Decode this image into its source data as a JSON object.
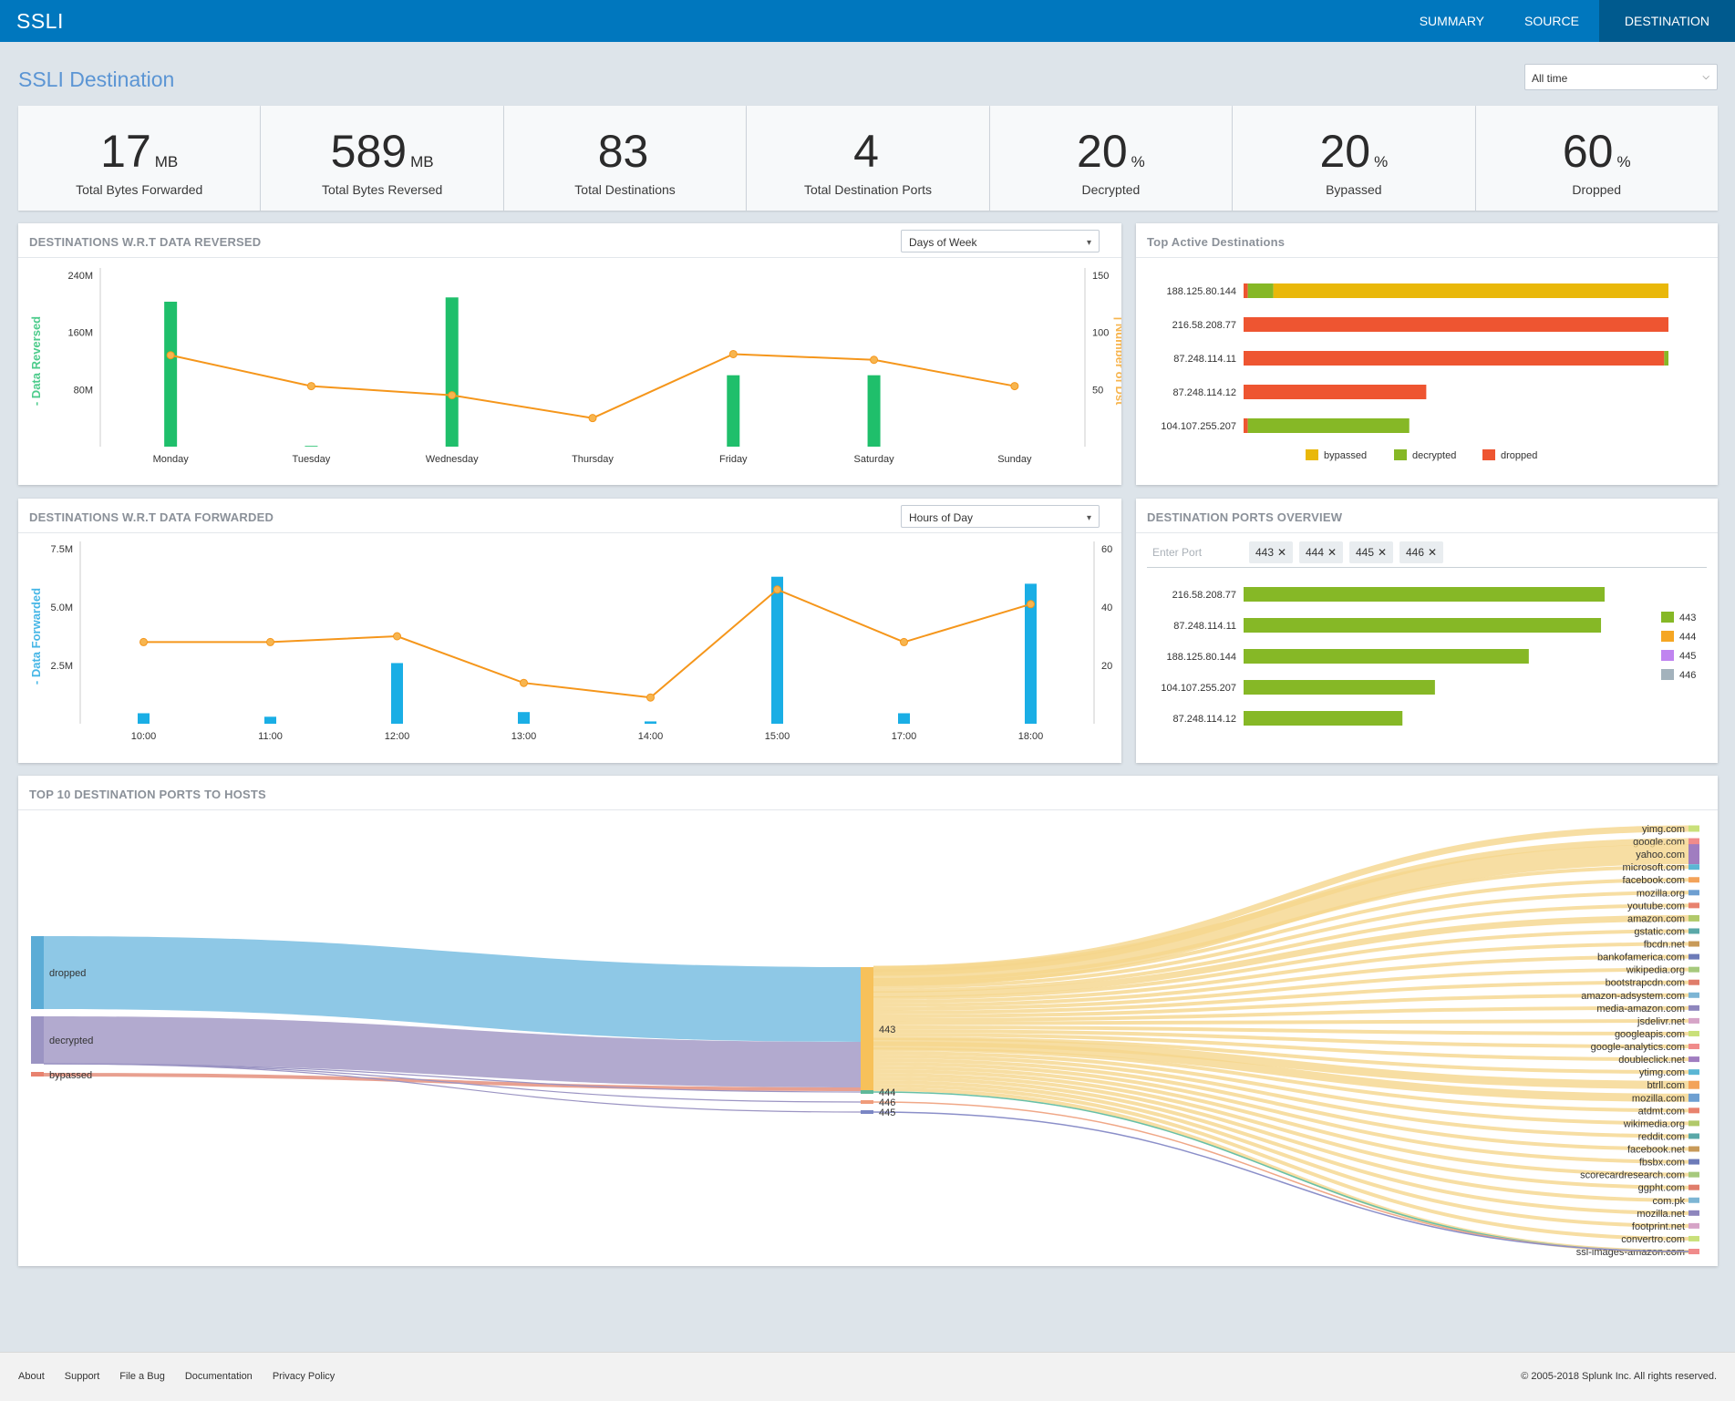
{
  "app": {
    "title": "SSLI"
  },
  "nav": {
    "items": [
      {
        "label": "SUMMARY",
        "active": false
      },
      {
        "label": "SOURCE",
        "active": false
      },
      {
        "label": "DESTINATION",
        "active": true
      }
    ]
  },
  "page": {
    "title": "SSLI Destination",
    "time_range": "All time"
  },
  "kpis": [
    {
      "value": "17",
      "unit": "MB",
      "label": "Total Bytes Forwarded"
    },
    {
      "value": "589",
      "unit": "MB",
      "label": "Total Bytes Reversed"
    },
    {
      "value": "83",
      "unit": "",
      "label": "Total Destinations"
    },
    {
      "value": "4",
      "unit": "",
      "label": "Total Destination Ports"
    },
    {
      "value": "20",
      "unit": "%",
      "label": "Decrypted"
    },
    {
      "value": "20",
      "unit": "%",
      "label": "Bypassed"
    },
    {
      "value": "60",
      "unit": "%",
      "label": "Dropped"
    }
  ],
  "panels": {
    "reversed": {
      "title": "DESTINATIONS W.R.T DATA REVERSED",
      "dropdown": "Days of Week"
    },
    "top_active": {
      "title": "Top Active Destinations"
    },
    "forwarded": {
      "title": "DESTINATIONS W.R.T DATA FORWARDED",
      "dropdown": "Hours of Day"
    },
    "ports_overview": {
      "title": "DESTINATION PORTS OVERVIEW",
      "input_placeholder": "Enter Port",
      "chips": [
        "443",
        "444",
        "445",
        "446"
      ]
    },
    "sankey": {
      "title": "TOP 10 DESTINATION PORTS TO HOSTS"
    }
  },
  "chart_data": [
    {
      "id": "reversed",
      "type": "bar+line",
      "categories": [
        "Monday",
        "Tuesday",
        "Wednesday",
        "Thursday",
        "Friday",
        "Saturday",
        "Sunday"
      ],
      "series": [
        {
          "name": "Data Reversed",
          "axis": "left",
          "type": "bar",
          "color": "#1fbf6b",
          "values": [
            203,
            1,
            209,
            0,
            100,
            100,
            0
          ]
        },
        {
          "name": "Number of Dst",
          "axis": "right",
          "type": "line",
          "color": "#f5961b",
          "values": [
            80,
            53,
            45,
            25,
            81,
            76,
            53
          ]
        }
      ],
      "ylabel": "Data Reversed",
      "y2label": "Number of Dst",
      "yticks": [
        "80M",
        "160M",
        "240M"
      ],
      "ylim": [
        0,
        240
      ],
      "y2ticks": [
        "50",
        "100",
        "150"
      ],
      "y2lim": [
        0,
        150
      ]
    },
    {
      "id": "top_active",
      "type": "bar",
      "orientation": "horizontal",
      "stacked": true,
      "categories": [
        "188.125.80.144",
        "216.58.208.77",
        "87.248.114.11",
        "87.248.114.12",
        "104.107.255.207"
      ],
      "series": [
        {
          "name": "dropped",
          "color": "#ee5531",
          "values": [
            1,
            100,
            99,
            43,
            1
          ]
        },
        {
          "name": "decrypted",
          "color": "#86b826",
          "values": [
            6,
            0,
            1,
            0,
            38
          ]
        },
        {
          "name": "bypassed",
          "color": "#e9b80a",
          "values": [
            93,
            0,
            0,
            0,
            0
          ]
        }
      ],
      "legend": [
        "bypassed",
        "decrypted",
        "dropped"
      ]
    },
    {
      "id": "forwarded",
      "type": "bar+line",
      "categories": [
        "10:00",
        "11:00",
        "12:00",
        "13:00",
        "14:00",
        "15:00",
        "17:00",
        "18:00"
      ],
      "series": [
        {
          "name": "Data Forwarded",
          "axis": "left",
          "type": "bar",
          "color": "#1aaee5",
          "values": [
            0.45,
            0.3,
            2.6,
            0.5,
            0.1,
            6.3,
            0.45,
            6.0
          ]
        },
        {
          "name": "Number of Dst",
          "axis": "right",
          "type": "line",
          "color": "#f5961b",
          "values": [
            28,
            28,
            30,
            14,
            9,
            46,
            28,
            41
          ]
        }
      ],
      "ylabel": "Data Forwarded",
      "y2label": "Number of Dst",
      "yticks": [
        "2.5M",
        "5.0M",
        "7.5M"
      ],
      "ylim": [
        0,
        7.5
      ],
      "y2ticks": [
        "20",
        "40",
        "60"
      ],
      "y2lim": [
        0,
        60
      ]
    },
    {
      "id": "ports_overview",
      "type": "bar",
      "orientation": "horizontal",
      "categories": [
        "216.58.208.77",
        "87.248.114.11",
        "188.125.80.144",
        "104.107.255.207",
        "87.248.114.12"
      ],
      "values": [
        100,
        99,
        79,
        53,
        44
      ],
      "legend": [
        {
          "name": "443",
          "color": "#86b826"
        },
        {
          "name": "444",
          "color": "#f5a623"
        },
        {
          "name": "445",
          "color": "#c084f0"
        },
        {
          "name": "446",
          "color": "#a3b2bc"
        }
      ]
    },
    {
      "id": "sankey",
      "type": "sankey",
      "sources": [
        {
          "name": "dropped",
          "color": "#5bacd6",
          "value": 60
        },
        {
          "name": "decrypted",
          "color": "#9b94c3",
          "value": 37
        },
        {
          "name": "bypassed",
          "color": "#e8826e",
          "value": 3
        }
      ],
      "ports": [
        "443",
        "444",
        "446",
        "445"
      ],
      "hosts": [
        "yimg.com",
        "google.com",
        "yahoo.com",
        "microsoft.com",
        "facebook.com",
        "mozilla.org",
        "youtube.com",
        "amazon.com",
        "gstatic.com",
        "fbcdn.net",
        "bankofamerica.com",
        "wikipedia.org",
        "bootstrapcdn.com",
        "amazon-adsystem.com",
        "media-amazon.com",
        "jsdelivr.net",
        "googleapis.com",
        "google-analytics.com",
        "doubleclick.net",
        "ytimg.com",
        "btrll.com",
        "mozilla.com",
        "atdmt.com",
        "wikimedia.org",
        "reddit.com",
        "facebook.net",
        "fbsbx.com",
        "scorecardresearch.com",
        "ggpht.com",
        "com.pk",
        "mozilla.net",
        "footprint.net",
        "convertro.com",
        "ssl-images-amazon.com"
      ]
    }
  ],
  "footer": {
    "links": [
      "About",
      "Support",
      "File a Bug",
      "Documentation",
      "Privacy Policy"
    ],
    "copyright": "© 2005-2018 Splunk Inc. All rights reserved."
  }
}
